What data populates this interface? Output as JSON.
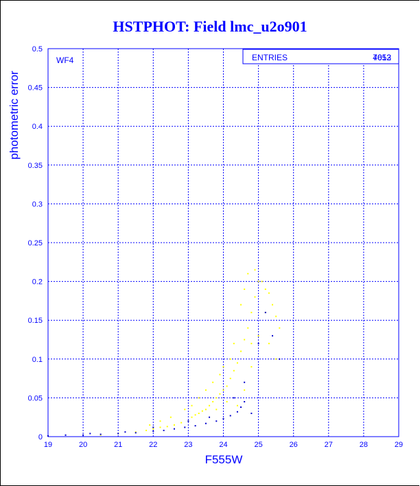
{
  "chart_data": {
    "type": "scatter",
    "title": "HSTPHOT: Field lmc_u2o901",
    "xlabel": "F555W",
    "ylabel": "photometric error",
    "panel_label": "WF4",
    "stats_box": {
      "label": "ENTRIES",
      "value_overlap": [
        "7052",
        "4613"
      ]
    },
    "xlim": [
      19,
      29
    ],
    "ylim": [
      0,
      0.5
    ],
    "x_ticks": [
      19,
      20,
      21,
      22,
      23,
      24,
      25,
      26,
      27,
      28,
      29
    ],
    "y_ticks": [
      0,
      0.05,
      0.1,
      0.15,
      0.2,
      0.25,
      0.3,
      0.35,
      0.4,
      0.45,
      0.5
    ],
    "x_tick_labels": [
      "19",
      "20",
      "21",
      "22",
      "23",
      "24",
      "25",
      "26",
      "27",
      "28",
      "29"
    ],
    "y_tick_labels": [
      "0",
      "0.05",
      "0.1",
      "0.15",
      "0.2",
      "0.25",
      "0.3",
      "0.35",
      "0.4",
      "0.45",
      "0.5"
    ],
    "grid": true,
    "colors": {
      "axes": "#0000ff",
      "series_yellow": "#ffff00",
      "series_blue": "#0000cc",
      "title": "#0000ff"
    },
    "series": [
      {
        "color": "#ffff00",
        "points": [
          [
            20.5,
            0.002
          ],
          [
            21.0,
            0.004
          ],
          [
            21.5,
            0.006
          ],
          [
            21.8,
            0.008
          ],
          [
            22.0,
            0.01
          ],
          [
            22.2,
            0.012
          ],
          [
            22.4,
            0.013
          ],
          [
            22.6,
            0.015
          ],
          [
            22.8,
            0.018
          ],
          [
            23.0,
            0.02
          ],
          [
            23.1,
            0.025
          ],
          [
            23.2,
            0.028
          ],
          [
            23.3,
            0.03
          ],
          [
            23.4,
            0.033
          ],
          [
            23.5,
            0.035
          ],
          [
            23.6,
            0.04
          ],
          [
            23.7,
            0.045
          ],
          [
            23.8,
            0.05
          ],
          [
            23.9,
            0.055
          ],
          [
            24.0,
            0.06
          ],
          [
            24.1,
            0.065
          ],
          [
            24.2,
            0.075
          ],
          [
            24.3,
            0.085
          ],
          [
            24.4,
            0.095
          ],
          [
            24.5,
            0.11
          ],
          [
            24.6,
            0.125
          ],
          [
            24.7,
            0.14
          ],
          [
            24.8,
            0.16
          ],
          [
            24.9,
            0.18
          ],
          [
            25.0,
            0.2
          ],
          [
            24.6,
            0.19
          ],
          [
            24.7,
            0.21
          ],
          [
            24.9,
            0.215
          ],
          [
            25.1,
            0.2
          ],
          [
            25.2,
            0.19
          ],
          [
            25.3,
            0.185
          ],
          [
            25.4,
            0.17
          ],
          [
            25.5,
            0.155
          ],
          [
            25.6,
            0.14
          ],
          [
            24.3,
            0.12
          ],
          [
            24.2,
            0.1
          ],
          [
            24.0,
            0.09
          ],
          [
            23.9,
            0.08
          ],
          [
            23.7,
            0.07
          ],
          [
            23.5,
            0.06
          ],
          [
            23.3,
            0.05
          ],
          [
            23.1,
            0.04
          ],
          [
            22.9,
            0.035
          ],
          [
            22.5,
            0.025
          ],
          [
            22.2,
            0.02
          ],
          [
            21.9,
            0.015
          ],
          [
            24.5,
            0.17
          ],
          [
            24.8,
            0.09
          ],
          [
            25.0,
            0.13
          ],
          [
            25.3,
            0.12
          ],
          [
            24.6,
            0.06
          ],
          [
            24.4,
            0.04
          ],
          [
            24.1,
            0.045
          ],
          [
            23.8,
            0.035
          ],
          [
            25.5,
            0.1
          ],
          [
            24.8,
            0.12
          ],
          [
            25.2,
            0.16
          ]
        ]
      },
      {
        "color": "#0000cc",
        "points": [
          [
            19.0,
            0.001
          ],
          [
            19.5,
            0.002
          ],
          [
            20.0,
            0.002
          ],
          [
            20.5,
            0.003
          ],
          [
            21.0,
            0.004
          ],
          [
            21.5,
            0.005
          ],
          [
            22.0,
            0.007
          ],
          [
            22.3,
            0.008
          ],
          [
            22.6,
            0.01
          ],
          [
            22.9,
            0.012
          ],
          [
            23.2,
            0.014
          ],
          [
            23.5,
            0.017
          ],
          [
            23.8,
            0.02
          ],
          [
            24.0,
            0.023
          ],
          [
            24.2,
            0.027
          ],
          [
            24.4,
            0.032
          ],
          [
            24.5,
            0.038
          ],
          [
            24.6,
            0.045
          ],
          [
            23.0,
            0.02
          ],
          [
            23.6,
            0.025
          ],
          [
            24.3,
            0.05
          ],
          [
            24.6,
            0.07
          ],
          [
            25.0,
            0.12
          ],
          [
            25.2,
            0.16
          ],
          [
            25.4,
            0.13
          ],
          [
            25.6,
            0.1
          ],
          [
            24.8,
            0.03
          ],
          [
            22.0,
            0.012
          ],
          [
            21.2,
            0.006
          ],
          [
            20.2,
            0.004
          ]
        ]
      }
    ]
  }
}
